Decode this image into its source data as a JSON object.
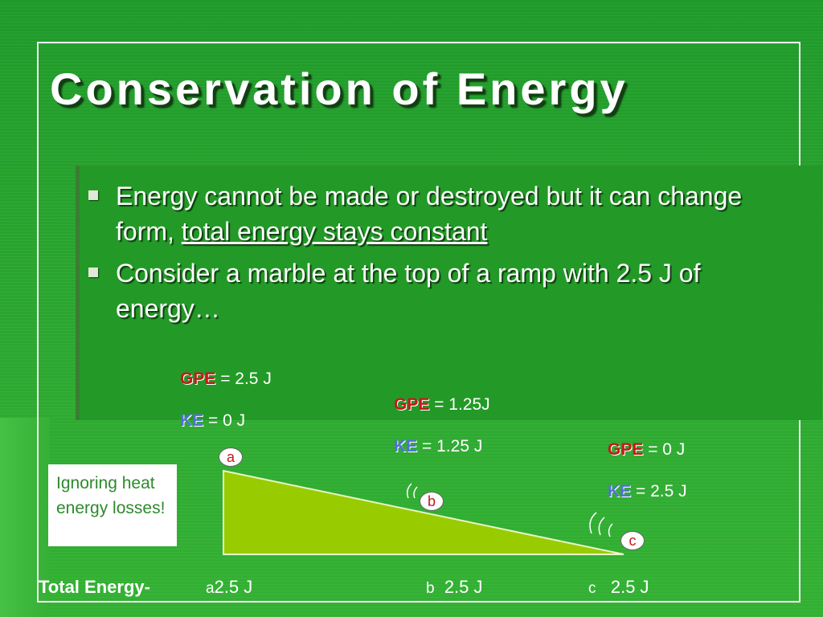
{
  "slide": {
    "title": "Conservation of Energy",
    "bullets": [
      {
        "text_before": "Energy cannot be made or destroyed but it can change form, ",
        "underlined": "total energy stays constant"
      },
      {
        "text_before": "Consider a marble at the top of a ramp with 2.5 J of energy…",
        "underlined": ""
      }
    ],
    "points": {
      "a": {
        "gpe_label": "GPE",
        "gpe_value": " = 2.5 J",
        "ke_label": "KE",
        "ke_value": " = 0 J",
        "marker": "a"
      },
      "b": {
        "gpe_label": "GPE",
        "gpe_value": " = 1.25J",
        "ke_label": "KE",
        "ke_value": " = 1.25 J",
        "marker": "b"
      },
      "c": {
        "gpe_label": "GPE",
        "gpe_value": " = 0 J",
        "ke_label": "KE",
        "ke_value": " = 2.5 J",
        "marker": "c"
      }
    },
    "note": "Ignoring heat energy losses!",
    "total": {
      "label": "Total Energy-",
      "items": [
        {
          "letter": "a",
          "value": "2.5 J"
        },
        {
          "letter": "b",
          "value": "2.5 J"
        },
        {
          "letter": "c",
          "value": "2.5 J"
        }
      ]
    },
    "colors": {
      "background": "#2aa52f",
      "ramp": "#99cc00",
      "gpe": "#c41a1a",
      "ke": "#5270d8",
      "marker_text": "#c41a1a"
    }
  }
}
